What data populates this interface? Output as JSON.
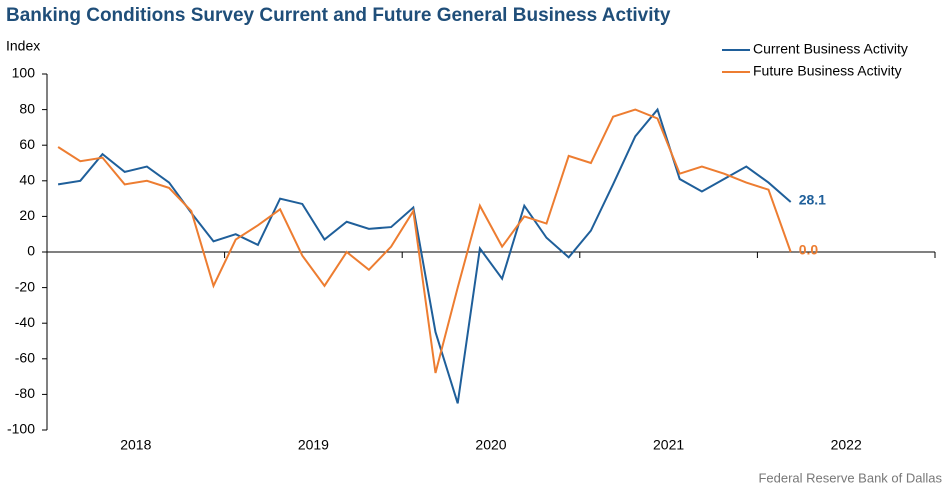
{
  "chart_data": {
    "type": "line",
    "title": "Banking Conditions Survey Current and Future General Business Activity",
    "y_label": "Index",
    "source": "Federal Reserve Bank of Dallas",
    "categories": [
      null,
      null,
      null,
      null,
      null,
      null,
      null,
      null,
      null,
      null,
      null,
      null,
      null,
      null,
      null,
      null,
      null,
      null,
      null,
      null,
      null,
      null,
      null,
      null,
      null,
      null,
      null,
      null,
      null,
      null,
      null,
      null,
      null,
      null
    ],
    "years": [
      "2018",
      "2019",
      "2020",
      "2021",
      "2022"
    ],
    "points_per_year": 8,
    "series": [
      {
        "name": "Current Business Activity",
        "color": "#1f5f9a",
        "values": [
          38,
          40,
          55,
          45,
          48,
          39,
          22,
          6,
          10,
          4,
          30,
          27,
          7,
          17,
          13,
          14,
          25,
          -45,
          -85,
          2,
          -15,
          26,
          8,
          -3,
          12,
          38,
          65,
          80,
          41,
          34,
          41,
          48,
          39,
          28.1
        ],
        "value_labels": [
          null,
          null,
          null,
          null,
          null,
          null,
          null,
          null,
          null,
          null,
          null,
          null,
          null,
          null,
          null,
          null,
          null,
          null,
          null,
          null,
          null,
          null,
          null,
          null,
          null,
          null,
          null,
          null,
          null,
          null,
          null,
          null,
          null,
          "28.1"
        ]
      },
      {
        "name": "Future Business Activity",
        "color": "#ed7d31",
        "values": [
          59,
          51,
          53,
          38,
          40,
          36,
          23,
          -19,
          7,
          15,
          24,
          -2,
          -19,
          0,
          -10,
          3,
          23,
          -68,
          -20,
          26,
          3,
          20,
          16,
          54,
          50,
          76,
          80,
          75,
          44,
          48,
          44,
          39,
          35,
          0
        ],
        "value_labels": [
          null,
          null,
          null,
          null,
          null,
          null,
          null,
          null,
          null,
          null,
          null,
          null,
          null,
          null,
          null,
          null,
          null,
          null,
          null,
          null,
          null,
          null,
          null,
          null,
          null,
          null,
          null,
          null,
          null,
          null,
          null,
          null,
          null,
          "0.0"
        ]
      }
    ],
    "ylim": [
      -100,
      100
    ],
    "yticks": [
      -100,
      -80,
      -60,
      -40,
      -20,
      0,
      20,
      40,
      60,
      80,
      100
    ],
    "legend": "top-right"
  }
}
